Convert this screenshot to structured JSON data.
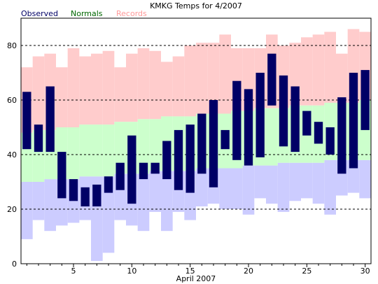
{
  "chart_data": {
    "type": "bar",
    "title": "KMKG Temps for 4/2007",
    "xlabel": "April 2007",
    "ylabel": "",
    "xlim": [
      0.5,
      30.5
    ],
    "ylim": [
      0,
      90
    ],
    "x_ticks": [
      5,
      10,
      15,
      20,
      25,
      30
    ],
    "y_ticks": [
      0,
      20,
      40,
      60,
      80
    ],
    "grid_y": [
      20,
      40,
      60,
      80
    ],
    "legend": {
      "placement": "top-left, above plot",
      "observed": "Observed",
      "normals": "Normals",
      "records": "Records"
    },
    "colors": {
      "observed": "#000066",
      "normals": "#ccffcc",
      "records_high": "#ffcccc",
      "records_low": "#ccccff",
      "legend_observed": "#000066",
      "legend_normals": "#006600",
      "legend_records": "#ff9999",
      "grid": "#000000"
    },
    "days": [
      1,
      2,
      3,
      4,
      5,
      6,
      7,
      8,
      9,
      10,
      11,
      12,
      13,
      14,
      15,
      16,
      17,
      18,
      19,
      20,
      21,
      22,
      23,
      24,
      25,
      26,
      27,
      28,
      29,
      30
    ],
    "record_high": [
      72,
      76,
      77,
      72,
      79,
      76,
      77,
      78,
      72,
      77,
      79,
      78,
      74,
      76,
      80,
      81,
      81,
      84,
      79,
      79,
      79,
      84,
      80,
      81,
      83,
      84,
      85,
      77,
      86,
      85
    ],
    "record_low": [
      9,
      16,
      12,
      14,
      15,
      16,
      1,
      4,
      16,
      14,
      12,
      19,
      12,
      19,
      16,
      21,
      22,
      20,
      20,
      18,
      24,
      22,
      19,
      23,
      24,
      22,
      18,
      25,
      26,
      24
    ],
    "normal_high": [
      48,
      49,
      49,
      50,
      50,
      51,
      51,
      51,
      52,
      52,
      53,
      53,
      54,
      54,
      54,
      55,
      55,
      55,
      56,
      56,
      57,
      57,
      57,
      58,
      58,
      58,
      59,
      59,
      59,
      60
    ],
    "normal_low": [
      30,
      30,
      31,
      31,
      31,
      32,
      32,
      32,
      33,
      33,
      33,
      34,
      34,
      34,
      34,
      35,
      35,
      35,
      35,
      36,
      36,
      36,
      37,
      37,
      37,
      37,
      38,
      38,
      38,
      38
    ],
    "observed_high": [
      63,
      51,
      65,
      41,
      31,
      28,
      29,
      32,
      37,
      47,
      37,
      37,
      45,
      49,
      51,
      55,
      60,
      49,
      67,
      64,
      70,
      77,
      69,
      65,
      56,
      52,
      50,
      61,
      70,
      71
    ],
    "observed_low": [
      42,
      41,
      41,
      24,
      23,
      21,
      21,
      26,
      27,
      22,
      31,
      33,
      31,
      27,
      26,
      33,
      28,
      42,
      38,
      36,
      39,
      58,
      43,
      41,
      47,
      44,
      40,
      33,
      35,
      49
    ]
  }
}
